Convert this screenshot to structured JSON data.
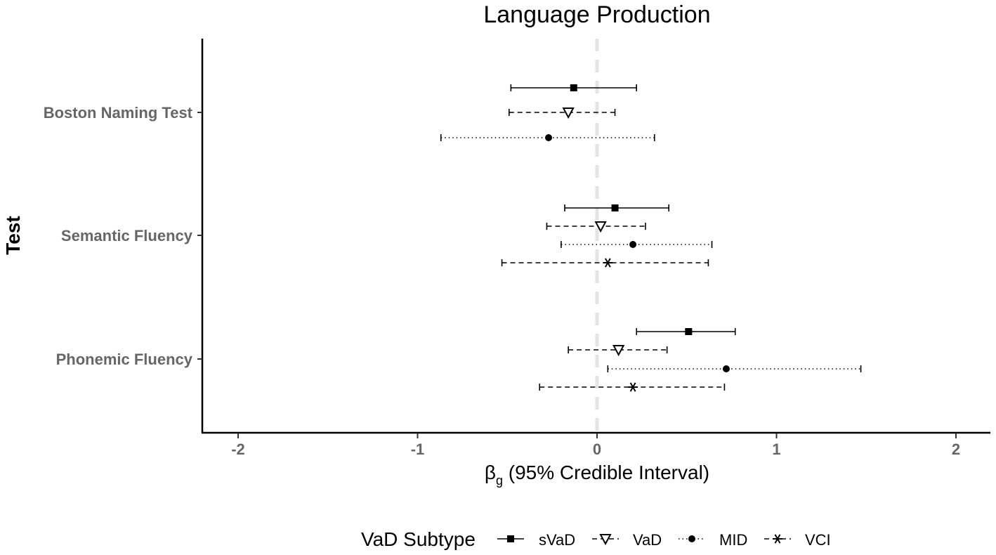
{
  "chart_data": {
    "type": "forest",
    "title": "Language Production",
    "xlabel": "β",
    "xlabel_subscript": "g",
    "xlabel_suffix": " (95% Credible Interval)",
    "ylabel": "Test",
    "xlim": [
      -2.2,
      2.2
    ],
    "xticks": [
      -2,
      -1,
      0,
      1,
      2
    ],
    "reference_line": 0,
    "grid": false,
    "legend_position": "bottom",
    "legend_title": "VaD Subtype",
    "categories": [
      "Boston Naming Test",
      "Semantic Fluency",
      "Phonemic Fluency"
    ],
    "series": [
      {
        "name": "sVaD",
        "marker": "filled-square",
        "linetype": "solid",
        "estimates": [
          -0.13,
          0.1,
          0.51
        ],
        "lower": [
          -0.48,
          -0.18,
          0.22
        ],
        "upper": [
          0.22,
          0.4,
          0.77
        ]
      },
      {
        "name": "VaD",
        "marker": "open-triangle-down",
        "linetype": "dashed",
        "estimates": [
          -0.16,
          0.02,
          0.12
        ],
        "lower": [
          -0.49,
          -0.28,
          -0.16
        ],
        "upper": [
          0.1,
          0.27,
          0.39
        ]
      },
      {
        "name": "MID",
        "marker": "filled-circle",
        "linetype": "dotted",
        "estimates": [
          -0.27,
          0.2,
          0.72
        ],
        "lower": [
          -0.87,
          -0.2,
          0.06
        ],
        "upper": [
          0.32,
          0.64,
          1.47
        ]
      },
      {
        "name": "VCI",
        "marker": "asterisk",
        "linetype": "dashed",
        "estimates": [
          null,
          0.06,
          0.2
        ],
        "lower": [
          null,
          -0.53,
          -0.32
        ],
        "upper": [
          null,
          0.62,
          0.71
        ]
      }
    ]
  }
}
